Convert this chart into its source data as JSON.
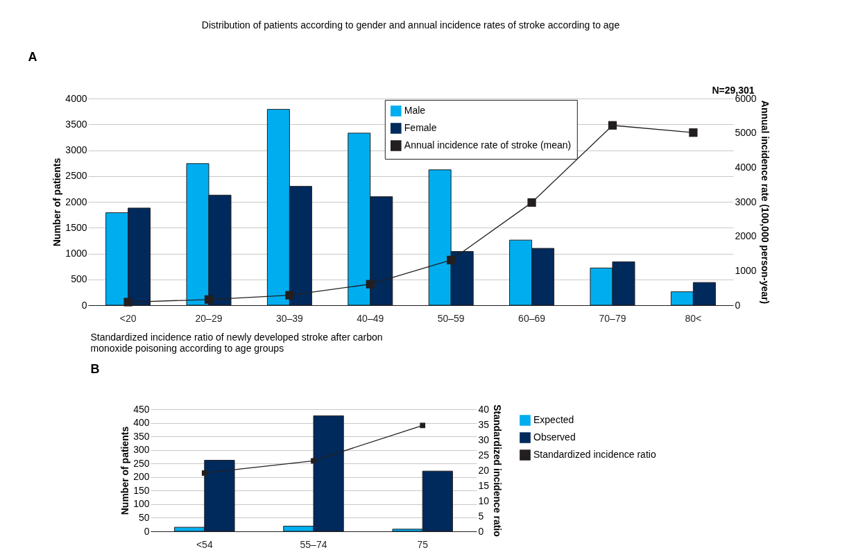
{
  "chart_data": [
    {
      "type": "bar",
      "title": "Distribution of patients according to gender and annual incidence rates of stroke according to age",
      "ylabel": "Number of patients",
      "y2label": "Annual incidence rate (100,000 person-year)",
      "annotations": [
        "A",
        "N=29,301"
      ],
      "categories": [
        "<20",
        "20–29",
        "30–39",
        "40–49",
        "50–59",
        "60–69",
        "70–79",
        "80<"
      ],
      "series": [
        {
          "name": "Male",
          "color": "#00aeef",
          "values": [
            1790,
            2740,
            3790,
            3330,
            2620,
            1260,
            720,
            260
          ]
        },
        {
          "name": "Female",
          "color": "#002a5c",
          "values": [
            1880,
            2130,
            2300,
            2100,
            1040,
            1100,
            840,
            440
          ]
        },
        {
          "name": "Annual incidence rate of stroke (mean)",
          "type": "line",
          "axis": "y2",
          "color": "#231f20",
          "values": [
            90,
            165,
            290,
            610,
            1310,
            2980,
            5220,
            5010
          ]
        }
      ],
      "ylim": [
        0,
        4000
      ],
      "yticks": [
        0,
        500,
        1000,
        1500,
        2000,
        2500,
        3000,
        3500,
        4000
      ],
      "y2lim": [
        0,
        6000
      ],
      "y2ticks": [
        0,
        1000,
        2000,
        3000,
        4000,
        5000,
        6000
      ],
      "grid": "y",
      "legend": "top right",
      "marker": "square"
    },
    {
      "type": "bar",
      "title": "Standardized incidence ratio of newly developed stroke after carbon monoxide poisoning according to age groups",
      "ylabel": "Number of patients",
      "y2label": "Standardized incidence ratio",
      "annotations": [
        "B"
      ],
      "categories": [
        "<54",
        "55–74",
        "75"
      ],
      "series": [
        {
          "name": "Expected",
          "color": "#00aeef",
          "values": [
            15,
            19,
            8
          ]
        },
        {
          "name": "Observed",
          "color": "#002a5c",
          "values": [
            262,
            426,
            222
          ]
        },
        {
          "name": "Standardized incidence ratio",
          "type": "line",
          "axis": "y2",
          "color": "#231f20",
          "values": [
            19.1,
            23.1,
            34.7
          ]
        }
      ],
      "ylim": [
        0,
        450
      ],
      "yticks": [
        0,
        50,
        100,
        150,
        200,
        250,
        300,
        350,
        400,
        450
      ],
      "y2lim": [
        0,
        40
      ],
      "y2ticks": [
        0,
        5,
        10,
        15,
        20,
        25,
        30,
        35,
        40
      ],
      "grid": "y",
      "legend": "right",
      "marker": "square"
    }
  ]
}
